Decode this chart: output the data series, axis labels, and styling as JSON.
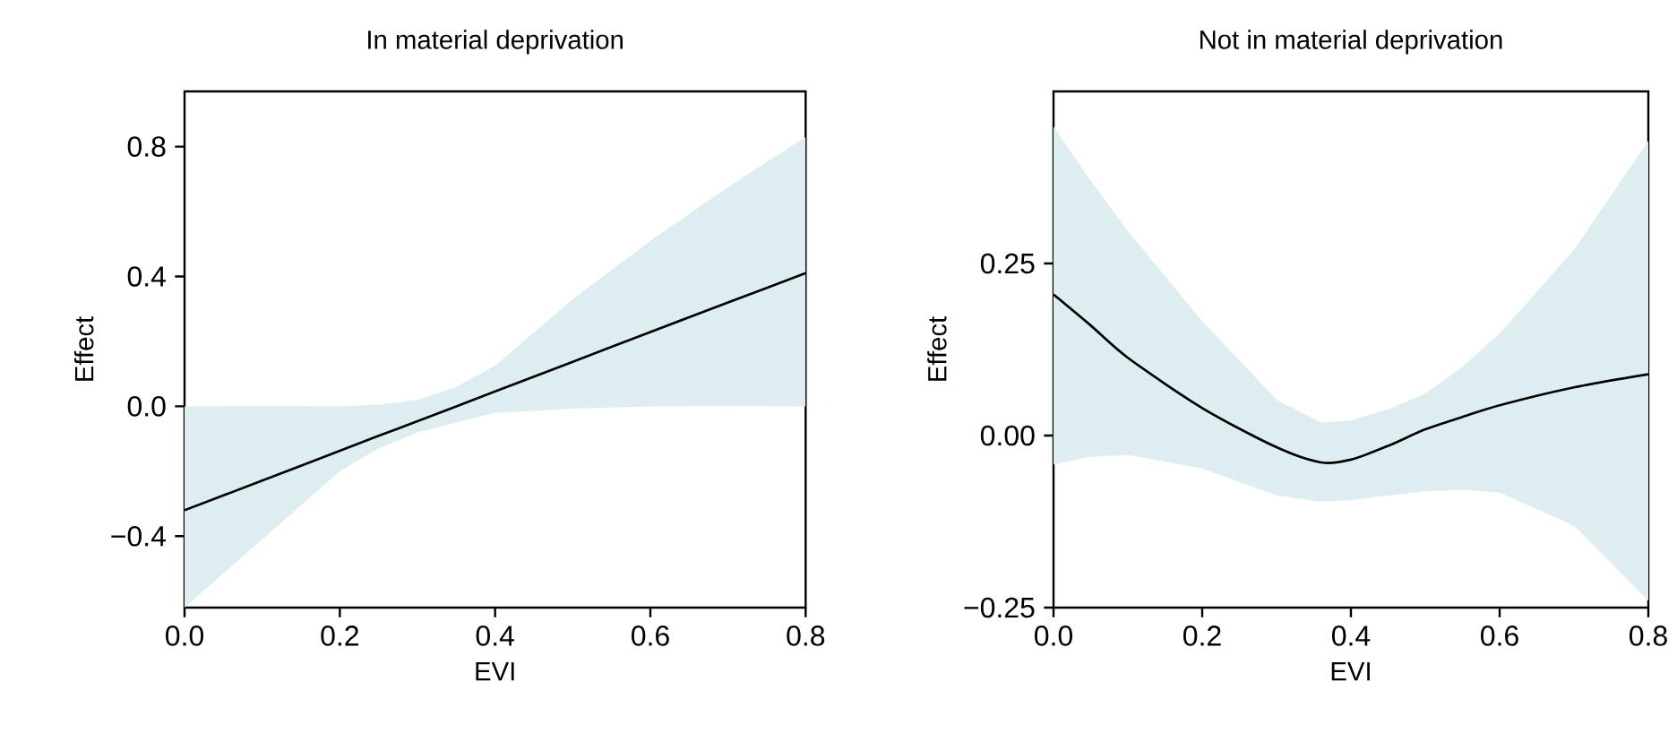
{
  "chart_data": [
    {
      "type": "line",
      "title": "In material deprivation",
      "xlabel": "EVI",
      "ylabel": "Effect",
      "x": [
        0,
        0.1,
        0.2,
        0.25,
        0.3,
        0.35,
        0.4,
        0.5,
        0.6,
        0.7,
        0.8
      ],
      "series": [
        {
          "color": "#000000",
          "values": [
            -0.32,
            -0.229,
            -0.137,
            -0.091,
            -0.046,
            0.0,
            0.046,
            0.137,
            0.229,
            0.32,
            0.41
          ],
          "lower": [
            -0.62,
            -0.41,
            -0.2,
            -0.13,
            -0.08,
            -0.05,
            -0.02,
            -0.007,
            0.0,
            0.001,
            0.0
          ],
          "upper": [
            0.0,
            0.001,
            0.0,
            0.005,
            0.02,
            0.06,
            0.125,
            0.33,
            0.51,
            0.675,
            0.83
          ]
        }
      ],
      "xlim": [
        0,
        0.8
      ],
      "ylim": [
        -0.62,
        0.97
      ],
      "xticks": [
        {
          "value": 0,
          "label": "0.0"
        },
        0.2,
        0.4,
        0.6,
        0.8
      ],
      "yticks": [
        {
          "value": -0.4,
          "label": "−0.4"
        },
        {
          "value": 0.0,
          "label": "0.0"
        },
        {
          "value": 0.4,
          "label": "0.4"
        },
        {
          "value": 0.8,
          "label": "0.8"
        }
      ],
      "grid": false,
      "marker": "none",
      "line_style": "solid"
    },
    {
      "type": "line",
      "title": "Not in material deprivation",
      "xlabel": "EVI",
      "ylabel": "Effect",
      "x": [
        0,
        0.05,
        0.1,
        0.2,
        0.3,
        0.36,
        0.4,
        0.45,
        0.5,
        0.55,
        0.6,
        0.7,
        0.8
      ],
      "series": [
        {
          "color": "#000000",
          "values": [
            0.205,
            0.16,
            0.113,
            0.04,
            -0.017,
            -0.039,
            -0.035,
            -0.015,
            0.009,
            0.027,
            0.044,
            0.07,
            0.089
          ],
          "lower": [
            -0.042,
            -0.031,
            -0.028,
            -0.048,
            -0.087,
            -0.096,
            -0.094,
            -0.087,
            -0.081,
            -0.079,
            -0.083,
            -0.131,
            -0.24
          ],
          "upper": [
            0.449,
            0.37,
            0.297,
            0.166,
            0.052,
            0.019,
            0.022,
            0.038,
            0.061,
            0.1,
            0.148,
            0.27,
            0.428
          ]
        }
      ],
      "xlim": [
        0,
        0.8
      ],
      "ylim": [
        -0.25,
        0.5
      ],
      "xticks": [
        {
          "value": 0,
          "label": "0.0"
        },
        0.2,
        0.4,
        0.6,
        0.8
      ],
      "yticks": [
        {
          "value": -0.25,
          "label": "−0.25"
        },
        {
          "value": 0.0,
          "label": "0.00"
        },
        {
          "value": 0.25,
          "label": "0.25"
        }
      ],
      "grid": false,
      "marker": "none",
      "line_style": "solid"
    }
  ]
}
